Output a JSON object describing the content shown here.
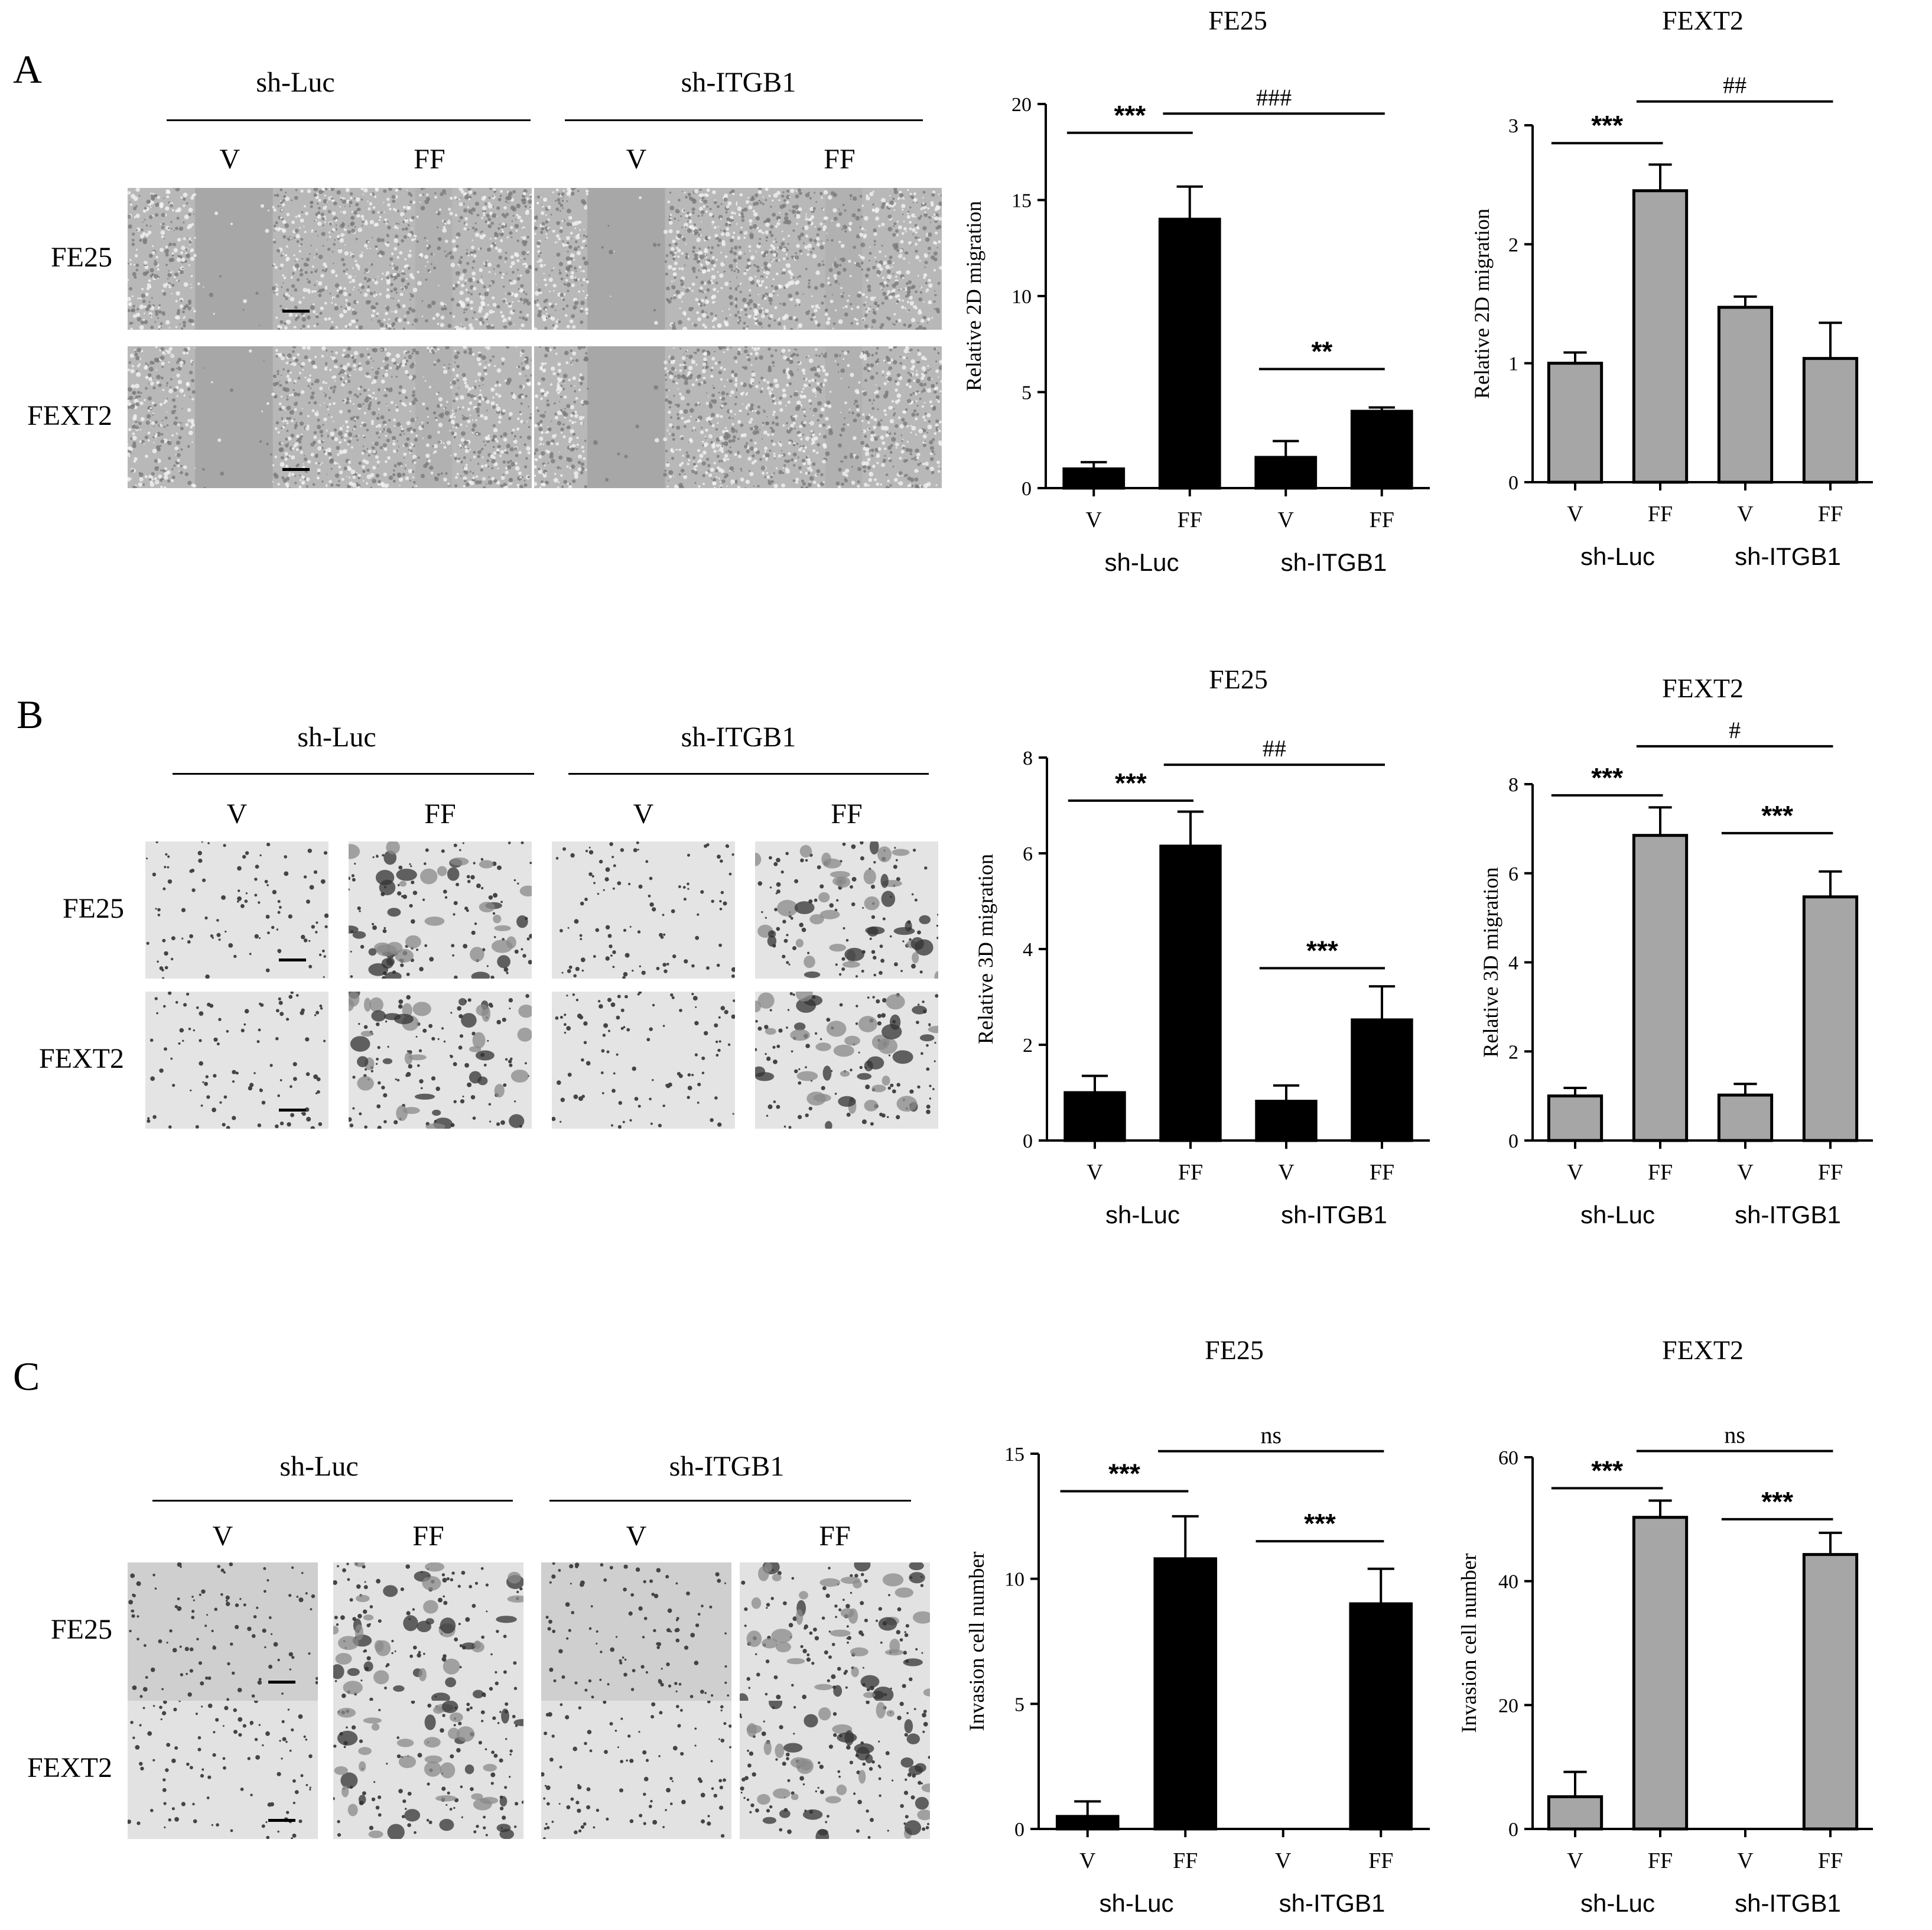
{
  "panels": [
    {
      "letter": "A",
      "groups": [
        "sh-Luc",
        "sh-ITGB1"
      ],
      "conditions": [
        "V",
        "FF",
        "V",
        "FF"
      ],
      "rows": [
        "FE25",
        "FEXT2"
      ],
      "image_type": "wound",
      "scale_bar_cells": [
        [
          0,
          0
        ],
        [
          1,
          0
        ]
      ]
    },
    {
      "letter": "B",
      "groups": [
        "sh-Luc",
        "sh-ITGB1"
      ],
      "conditions": [
        "V",
        "FF",
        "V",
        "FF"
      ],
      "rows": [
        "FE25",
        "FEXT2"
      ],
      "image_type": "transwell",
      "scale_bar_cells": [
        [
          0,
          0
        ],
        [
          1,
          0
        ]
      ]
    },
    {
      "letter": "C",
      "groups": [
        "sh-Luc",
        "sh-ITGB1"
      ],
      "conditions": [
        "V",
        "FF",
        "V",
        "FF"
      ],
      "rows": [
        "FE25",
        "FEXT2"
      ],
      "image_type": "invasion",
      "scale_bar_cells": [
        [
          0,
          0
        ],
        [
          1,
          0
        ]
      ]
    }
  ],
  "chart_data": [
    {
      "type": "bar",
      "id": "A-FE25",
      "title": "FE25",
      "ylabel": "Relative 2D migration",
      "categories": [
        "V",
        "FF",
        "V",
        "FF"
      ],
      "groups": [
        "sh-Luc",
        "sh-ITGB1"
      ],
      "values": [
        1.0,
        14.0,
        1.6,
        4.0
      ],
      "errors": [
        0.35,
        1.7,
        0.85,
        0.2
      ],
      "ylim": [
        0,
        20
      ],
      "yticks": [
        "0",
        "5",
        "10",
        "15",
        "20"
      ],
      "bar_color": "#000000",
      "annotations": [
        {
          "text": "***",
          "from": 0,
          "to": 1,
          "level": 18.5,
          "kind": "star"
        },
        {
          "text": "**",
          "from": 2,
          "to": 3,
          "level": 6.2,
          "kind": "star"
        },
        {
          "text": "###",
          "from": 1,
          "to": 3,
          "level": 19.5,
          "kind": "hash"
        }
      ]
    },
    {
      "type": "bar",
      "id": "A-FEXT2",
      "title": "FEXT2",
      "ylabel": "Relative 2D migration",
      "categories": [
        "V",
        "FF",
        "V",
        "FF"
      ],
      "groups": [
        "sh-Luc",
        "sh-ITGB1"
      ],
      "values": [
        1.0,
        2.45,
        1.47,
        1.04
      ],
      "errors": [
        0.09,
        0.22,
        0.09,
        0.3
      ],
      "ylim": [
        0,
        3
      ],
      "yticks": [
        "0",
        "1",
        "2",
        "3"
      ],
      "bar_color": "#a6a6a6",
      "annotations": [
        {
          "text": "***",
          "from": 0,
          "to": 1,
          "level": 2.85,
          "kind": "star"
        },
        {
          "text": "##",
          "from": 1,
          "to": 3,
          "level": 3.2,
          "kind": "hash"
        }
      ]
    },
    {
      "type": "bar",
      "id": "B-FE25",
      "title": "FE25",
      "ylabel": "Relative 3D migration",
      "categories": [
        "V",
        "FF",
        "V",
        "FF"
      ],
      "groups": [
        "sh-Luc",
        "sh-ITGB1"
      ],
      "values": [
        1.0,
        6.15,
        0.82,
        2.52
      ],
      "errors": [
        0.35,
        0.72,
        0.33,
        0.7
      ],
      "ylim": [
        0,
        8
      ],
      "yticks": [
        "0",
        "2",
        "4",
        "6",
        "8"
      ],
      "bar_color": "#000000",
      "annotations": [
        {
          "text": "***",
          "from": 0,
          "to": 1,
          "level": 7.1,
          "kind": "star"
        },
        {
          "text": "***",
          "from": 2,
          "to": 3,
          "level": 3.6,
          "kind": "star"
        },
        {
          "text": "##",
          "from": 1,
          "to": 3,
          "level": 7.85,
          "kind": "hash"
        }
      ]
    },
    {
      "type": "bar",
      "id": "B-FEXT2",
      "title": "FEXT2",
      "ylabel": "Relative 3D migration",
      "categories": [
        "V",
        "FF",
        "V",
        "FF"
      ],
      "groups": [
        "sh-Luc",
        "sh-ITGB1"
      ],
      "values": [
        1.0,
        6.85,
        1.02,
        5.47
      ],
      "errors": [
        0.18,
        0.63,
        0.25,
        0.57
      ],
      "ylim": [
        0,
        8
      ],
      "yticks": [
        "0",
        "2",
        "4",
        "6",
        "8"
      ],
      "bar_color": "#a6a6a6",
      "annotations": [
        {
          "text": "***",
          "from": 0,
          "to": 1,
          "level": 7.75,
          "kind": "star"
        },
        {
          "text": "***",
          "from": 2,
          "to": 3,
          "level": 6.9,
          "kind": "star"
        },
        {
          "text": "#",
          "from": 1,
          "to": 3,
          "level": 8.85,
          "kind": "hash"
        }
      ]
    },
    {
      "type": "bar",
      "id": "C-FE25",
      "title": "FE25",
      "ylabel": "Invasion cell number",
      "categories": [
        "V",
        "FF",
        "V",
        "FF"
      ],
      "groups": [
        "sh-Luc",
        "sh-ITGB1"
      ],
      "values": [
        0.5,
        10.8,
        0.0,
        9.0
      ],
      "errors": [
        0.6,
        1.7,
        0.0,
        1.4
      ],
      "ylim": [
        0,
        15
      ],
      "yticks": [
        "0",
        "5",
        "10",
        "15"
      ],
      "bar_color": "#000000",
      "annotations": [
        {
          "text": "***",
          "from": 0,
          "to": 1,
          "level": 13.5,
          "kind": "star"
        },
        {
          "text": "***",
          "from": 2,
          "to": 3,
          "level": 11.5,
          "kind": "star"
        },
        {
          "text": "ns",
          "from": 1,
          "to": 3,
          "level": 15.1,
          "kind": "hash"
        }
      ]
    },
    {
      "type": "bar",
      "id": "C-FEXT2",
      "title": "FEXT2",
      "ylabel": "Invasion cell number",
      "categories": [
        "V",
        "FF",
        "V",
        "FF"
      ],
      "groups": [
        "sh-Luc",
        "sh-ITGB1"
      ],
      "values": [
        5.2,
        50.3,
        0.0,
        44.3
      ],
      "errors": [
        4.0,
        2.7,
        0.0,
        3.5
      ],
      "ylim": [
        0,
        60
      ],
      "yticks": [
        "0",
        "20",
        "40",
        "60"
      ],
      "bar_color": "#a6a6a6",
      "annotations": [
        {
          "text": "***",
          "from": 0,
          "to": 1,
          "level": 55,
          "kind": "star"
        },
        {
          "text": "***",
          "from": 2,
          "to": 3,
          "level": 50,
          "kind": "star"
        },
        {
          "text": "ns",
          "from": 1,
          "to": 3,
          "level": 61,
          "kind": "hash"
        }
      ]
    }
  ]
}
